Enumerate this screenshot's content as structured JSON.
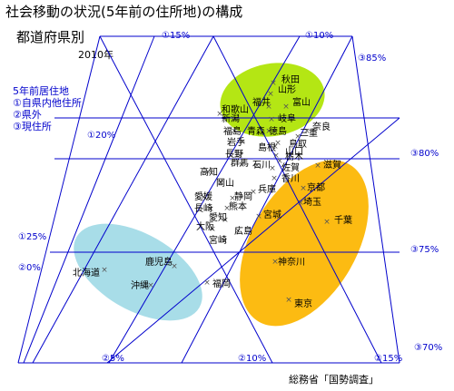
{
  "title": "社会移動の状況(5年前の住所地)の構成",
  "subtitle": "都道府県別",
  "year": "2010年",
  "source": "総務省「国勢調査」",
  "legend": [
    "5年前居住地",
    "①自県内他住所",
    "②県外",
    "③現住所"
  ],
  "colors": {
    "axis": "#0000cc",
    "green": "#b4e614",
    "blue": "#a8dde8",
    "orange": "#fcbb12",
    "marker": "#555555"
  },
  "chart_data": {
    "type": "scatter",
    "plot": "ternary",
    "axes": {
      "axis1": {
        "name": "①自県内他住所",
        "ticks": [
          "①15%",
          "①10%",
          "①20%",
          "①25%"
        ]
      },
      "axis2": {
        "name": "②県外",
        "ticks": [
          "②0%",
          "②5%",
          "②10%",
          "②15%"
        ]
      },
      "axis3": {
        "name": "③現住所",
        "ticks": [
          "③85%",
          "③80%",
          "③75%",
          "③70%"
        ]
      }
    },
    "clusters": [
      {
        "color": "green",
        "members": [
          "秋田",
          "山形",
          "福井",
          "富山",
          "和歌山",
          "新潟",
          "岐阜",
          "福島",
          "青森",
          "徳島",
          "奈良",
          "岩手",
          "三重",
          "島根",
          "鳥取"
        ]
      },
      {
        "color": "orange",
        "members": [
          "滋賀",
          "埼玉",
          "京都",
          "千葉",
          "神奈川",
          "東京"
        ]
      },
      {
        "color": "blue",
        "members": [
          "北海道",
          "沖縄",
          "鹿児島",
          "福岡"
        ]
      }
    ],
    "points": [
      {
        "name": "秋田"
      },
      {
        "name": "山形"
      },
      {
        "name": "福井"
      },
      {
        "name": "富山"
      },
      {
        "name": "和歌山"
      },
      {
        "name": "新潟"
      },
      {
        "name": "岐阜"
      },
      {
        "name": "福島"
      },
      {
        "name": "青森"
      },
      {
        "name": "徳島"
      },
      {
        "name": "奈良"
      },
      {
        "name": "岩手"
      },
      {
        "name": "三重"
      },
      {
        "name": "島根"
      },
      {
        "name": "鳥取"
      },
      {
        "name": "山口"
      },
      {
        "name": "長野"
      },
      {
        "name": "群馬"
      },
      {
        "name": "石川"
      },
      {
        "name": "栃木"
      },
      {
        "name": "佐賀"
      },
      {
        "name": "香川"
      },
      {
        "name": "滋賀"
      },
      {
        "name": "高知"
      },
      {
        "name": "岡山"
      },
      {
        "name": "兵庫"
      },
      {
        "name": "京都"
      },
      {
        "name": "愛媛"
      },
      {
        "name": "静岡"
      },
      {
        "name": "埼玉"
      },
      {
        "name": "長崎"
      },
      {
        "name": "熊本"
      },
      {
        "name": "宮城"
      },
      {
        "name": "愛知"
      },
      {
        "name": "千葉"
      },
      {
        "name": "大阪"
      },
      {
        "name": "広島"
      },
      {
        "name": "宮崎"
      },
      {
        "name": "神奈川"
      },
      {
        "name": "鹿児島"
      },
      {
        "name": "北海道"
      },
      {
        "name": "沖縄"
      },
      {
        "name": "福岡"
      },
      {
        "name": "東京"
      }
    ]
  }
}
